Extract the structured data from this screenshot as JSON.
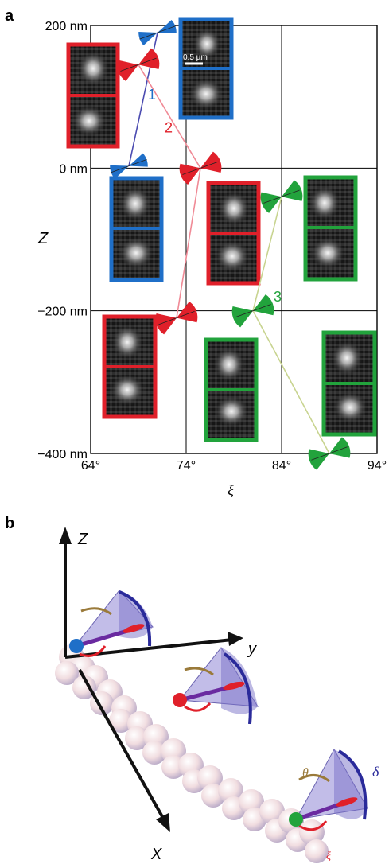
{
  "figure": {
    "panel_a_label": "a",
    "panel_b_label": "b",
    "scale_bar_label": "0.5 µm"
  },
  "chart_data": {
    "type": "scatter",
    "xlabel": "ξ",
    "ylabel": "Z",
    "x_ticks": [
      "64°",
      "74°",
      "84°",
      "94°"
    ],
    "y_ticks": [
      "200 nm",
      "0 nm",
      "−200 nm",
      "−400 nm"
    ],
    "xlim": [
      64,
      94
    ],
    "ylim": [
      -400,
      200
    ],
    "grid": true,
    "series": [
      {
        "name": "1",
        "color": "#1f6fc8",
        "points": [
          {
            "x": 71,
            "y": 190
          },
          {
            "x": 68,
            "y": 3
          }
        ]
      },
      {
        "name": "2",
        "color": "#e0202a",
        "points": [
          {
            "x": 69,
            "y": 145
          },
          {
            "x": 75.5,
            "y": 0
          },
          {
            "x": 73,
            "y": -210
          }
        ]
      },
      {
        "name": "3",
        "color": "#22a33c",
        "points": [
          {
            "x": 84,
            "y": -40
          },
          {
            "x": 81,
            "y": -200
          },
          {
            "x": 89,
            "y": -400
          }
        ]
      }
    ]
  },
  "panel_b": {
    "axis_z": "Z",
    "axis_y": "y",
    "axis_x": "X",
    "theta": "θ",
    "delta": "δ",
    "xi": "ξ"
  }
}
